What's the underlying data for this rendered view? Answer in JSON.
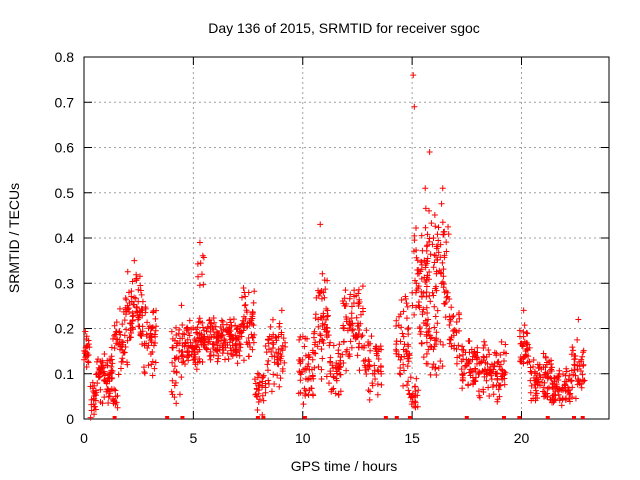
{
  "chart_data": {
    "type": "scatter",
    "title": "Day 136 of 2015, SRMTID for receiver sgoc",
    "xlabel": "GPS time / hours",
    "ylabel": "SRMTID / TECUs",
    "xlim": [
      0,
      24
    ],
    "ylim": [
      0,
      0.8
    ],
    "grid": true,
    "marker": "plus",
    "color": "#ff0000",
    "x_ticks": [
      {
        "value": 0,
        "label": "0"
      },
      {
        "value": 5,
        "label": "5"
      },
      {
        "value": 10,
        "label": "10"
      },
      {
        "value": 15,
        "label": "15"
      },
      {
        "value": 20,
        "label": "20"
      }
    ],
    "y_ticks": [
      {
        "value": 0,
        "label": "0"
      },
      {
        "value": 0.1,
        "label": "0.1"
      },
      {
        "value": 0.2,
        "label": "0.2"
      },
      {
        "value": 0.3,
        "label": "0.3"
      },
      {
        "value": 0.4,
        "label": "0.4"
      },
      {
        "value": 0.5,
        "label": "0.5"
      },
      {
        "value": 0.6,
        "label": "0.6"
      },
      {
        "value": 0.7,
        "label": "0.7"
      },
      {
        "value": 0.8,
        "label": "0.8"
      }
    ],
    "outliers": [
      {
        "x": 15.05,
        "y": 0.76
      },
      {
        "x": 15.1,
        "y": 0.69
      },
      {
        "x": 15.8,
        "y": 0.59
      },
      {
        "x": 16.4,
        "y": 0.51
      },
      {
        "x": 15.6,
        "y": 0.51
      },
      {
        "x": 10.8,
        "y": 0.43
      },
      {
        "x": 5.3,
        "y": 0.39
      },
      {
        "x": 2.3,
        "y": 0.35
      },
      {
        "x": 20.1,
        "y": 0.24
      },
      {
        "x": 22.6,
        "y": 0.22
      }
    ],
    "zero_points": [
      1.4,
      3.8,
      4.5,
      7.95,
      8.2,
      10.1,
      13.8,
      14.3,
      14.9,
      17.5,
      19.2,
      19.9,
      21.2,
      22.4,
      22.8
    ],
    "clusters": [
      {
        "x_start": 0.0,
        "x_end": 0.25,
        "y_min": 0.1,
        "y_max": 0.2,
        "count": 22
      },
      {
        "x_start": 0.25,
        "x_end": 0.55,
        "y_min": 0.0,
        "y_max": 0.12,
        "count": 22
      },
      {
        "x_start": 0.55,
        "x_end": 1.3,
        "y_min": 0.03,
        "y_max": 0.16,
        "count": 70
      },
      {
        "x_start": 1.3,
        "x_end": 1.6,
        "y_min": 0.0,
        "y_max": 0.08,
        "count": 12
      },
      {
        "x_start": 1.3,
        "x_end": 2.0,
        "y_min": 0.08,
        "y_max": 0.26,
        "count": 45
      },
      {
        "x_start": 1.9,
        "x_end": 2.7,
        "y_min": 0.15,
        "y_max": 0.34,
        "count": 70
      },
      {
        "x_start": 2.6,
        "x_end": 3.3,
        "y_min": 0.08,
        "y_max": 0.28,
        "count": 50
      },
      {
        "x_start": 4.0,
        "x_end": 4.5,
        "y_min": 0.02,
        "y_max": 0.26,
        "count": 40
      },
      {
        "x_start": 4.5,
        "x_end": 5.2,
        "y_min": 0.1,
        "y_max": 0.22,
        "count": 60
      },
      {
        "x_start": 5.2,
        "x_end": 6.0,
        "y_min": 0.12,
        "y_max": 0.24,
        "count": 70
      },
      {
        "x_start": 5.2,
        "x_end": 5.5,
        "y_min": 0.28,
        "y_max": 0.37,
        "count": 8
      },
      {
        "x_start": 6.0,
        "x_end": 7.2,
        "y_min": 0.12,
        "y_max": 0.23,
        "count": 110
      },
      {
        "x_start": 7.2,
        "x_end": 7.8,
        "y_min": 0.12,
        "y_max": 0.31,
        "count": 50
      },
      {
        "x_start": 7.8,
        "x_end": 8.3,
        "y_min": 0.0,
        "y_max": 0.12,
        "count": 30
      },
      {
        "x_start": 8.3,
        "x_end": 9.2,
        "y_min": 0.05,
        "y_max": 0.25,
        "count": 60
      },
      {
        "x_start": 9.8,
        "x_end": 10.5,
        "y_min": 0.02,
        "y_max": 0.2,
        "count": 50
      },
      {
        "x_start": 10.5,
        "x_end": 11.2,
        "y_min": 0.08,
        "y_max": 0.34,
        "count": 60
      },
      {
        "x_start": 11.2,
        "x_end": 11.8,
        "y_min": 0.04,
        "y_max": 0.18,
        "count": 40
      },
      {
        "x_start": 11.8,
        "x_end": 12.8,
        "y_min": 0.1,
        "y_max": 0.31,
        "count": 80
      },
      {
        "x_start": 12.8,
        "x_end": 13.6,
        "y_min": 0.02,
        "y_max": 0.2,
        "count": 50
      },
      {
        "x_start": 14.2,
        "x_end": 14.9,
        "y_min": 0.05,
        "y_max": 0.28,
        "count": 50
      },
      {
        "x_start": 14.8,
        "x_end": 15.3,
        "y_min": 0.0,
        "y_max": 0.1,
        "count": 25
      },
      {
        "x_start": 15.0,
        "x_end": 15.7,
        "y_min": 0.15,
        "y_max": 0.44,
        "count": 60
      },
      {
        "x_start": 15.6,
        "x_end": 16.7,
        "y_min": 0.2,
        "y_max": 0.5,
        "count": 80
      },
      {
        "x_start": 15.5,
        "x_end": 16.5,
        "y_min": 0.08,
        "y_max": 0.24,
        "count": 40
      },
      {
        "x_start": 16.7,
        "x_end": 17.2,
        "y_min": 0.1,
        "y_max": 0.26,
        "count": 30
      },
      {
        "x_start": 17.2,
        "x_end": 18.0,
        "y_min": 0.06,
        "y_max": 0.18,
        "count": 60
      },
      {
        "x_start": 18.0,
        "x_end": 19.3,
        "y_min": 0.03,
        "y_max": 0.18,
        "count": 90
      },
      {
        "x_start": 19.9,
        "x_end": 20.4,
        "y_min": 0.1,
        "y_max": 0.22,
        "count": 35
      },
      {
        "x_start": 20.4,
        "x_end": 21.4,
        "y_min": 0.03,
        "y_max": 0.15,
        "count": 80
      },
      {
        "x_start": 21.4,
        "x_end": 22.3,
        "y_min": 0.02,
        "y_max": 0.12,
        "count": 70
      },
      {
        "x_start": 22.3,
        "x_end": 22.9,
        "y_min": 0.03,
        "y_max": 0.2,
        "count": 40
      }
    ]
  }
}
